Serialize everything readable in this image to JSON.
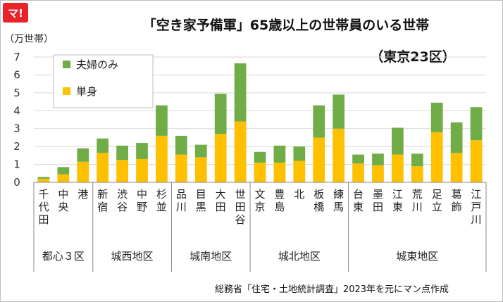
{
  "logo": {
    "text": "マ!"
  },
  "chart_data": {
    "type": "bar",
    "stacked": true,
    "title": "「空き家予備軍」65歳以上の世帯員のいる世帯",
    "subtitle": "（東京23区）",
    "ylabel": "（万世帯）",
    "ylim": [
      0,
      7
    ],
    "yticks": [
      0,
      1,
      2,
      3,
      4,
      5,
      6,
      7
    ],
    "grid": true,
    "legend_position": "top-left",
    "colors": {
      "single": "#ffc000",
      "couple": "#70ad47",
      "axis": "#888888",
      "grid": "#d9d9d9"
    },
    "categories": [
      "千代田",
      "中央",
      "港",
      "新宿",
      "渋谷",
      "中野",
      "杉並",
      "品川",
      "目黒",
      "大田",
      "世田谷",
      "文京",
      "豊島",
      "北",
      "板橋",
      "練馬",
      "台東",
      "墨田",
      "江東",
      "荒川",
      "足立",
      "葛飾",
      "江戸川"
    ],
    "groups": [
      {
        "label": "都心３区",
        "count": 3
      },
      {
        "label": "城西地区",
        "count": 4
      },
      {
        "label": "城南地区",
        "count": 4
      },
      {
        "label": "城北地区",
        "count": 5
      },
      {
        "label": "城東地区",
        "count": 7
      }
    ],
    "series": [
      {
        "name": "単身",
        "key": "single",
        "values": [
          0.2,
          0.45,
          1.15,
          1.65,
          1.25,
          1.3,
          2.6,
          1.55,
          1.4,
          2.7,
          3.4,
          1.1,
          1.1,
          1.2,
          2.5,
          3.0,
          1.05,
          0.95,
          1.55,
          0.9,
          2.8,
          1.65,
          2.35
        ]
      },
      {
        "name": "夫婦のみ",
        "key": "couple",
        "values": [
          0.1,
          0.4,
          0.75,
          0.8,
          0.8,
          0.9,
          1.7,
          1.05,
          0.7,
          2.25,
          3.25,
          0.6,
          0.95,
          0.8,
          1.8,
          1.9,
          0.5,
          0.65,
          1.5,
          0.7,
          1.65,
          1.7,
          1.85
        ]
      }
    ],
    "legend": [
      {
        "label": "夫婦のみ",
        "key": "couple"
      },
      {
        "label": "単身",
        "key": "single"
      }
    ],
    "source": "総務省「住宅・土地統計調査」2023年を元にマン点作成"
  }
}
